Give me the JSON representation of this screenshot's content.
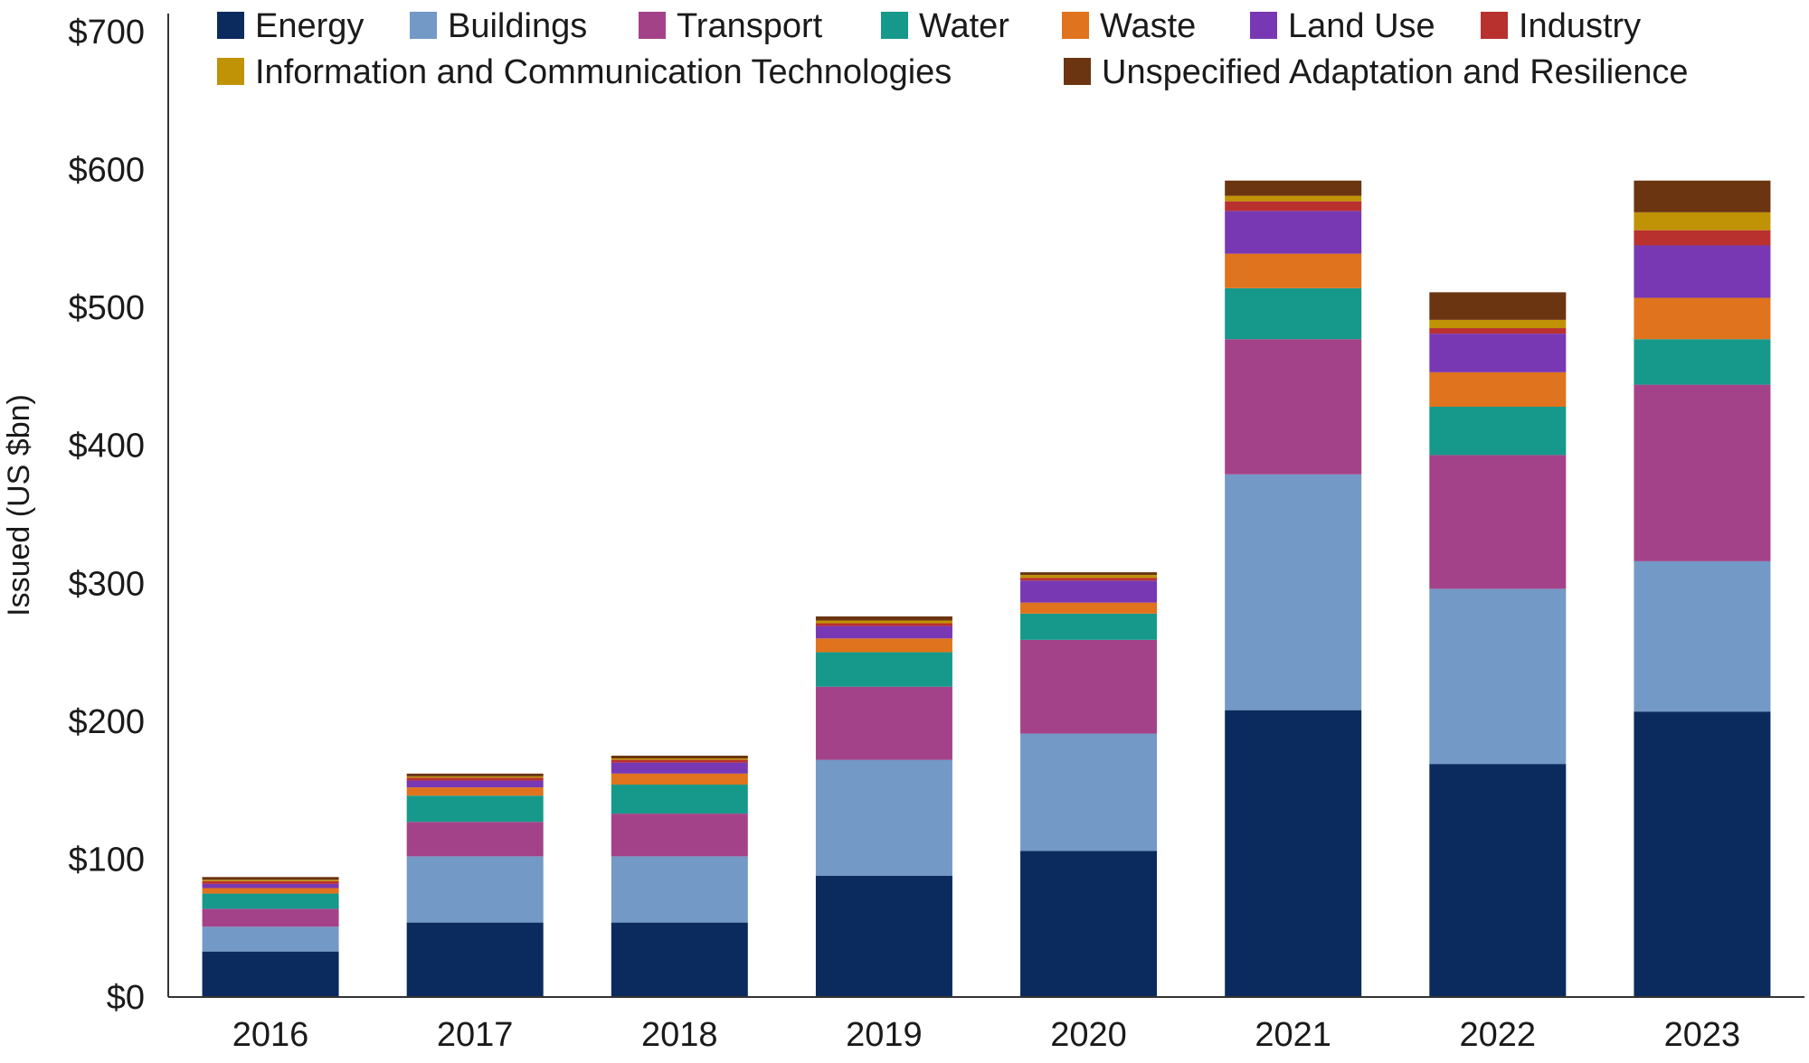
{
  "chart_data": {
    "type": "bar",
    "stacked": true,
    "title": "",
    "xlabel": "",
    "ylabel": "Issued (US $bn)",
    "ylim": [
      0,
      700
    ],
    "y_ticks": [
      0,
      100,
      200,
      300,
      400,
      500,
      600,
      700
    ],
    "y_tick_labels": [
      "$0",
      "$100",
      "$200",
      "$300",
      "$400",
      "$500",
      "$600",
      "$700"
    ],
    "grid": false,
    "legend_position": "top",
    "categories": [
      "2016",
      "2017",
      "2018",
      "2019",
      "2020",
      "2021",
      "2022",
      "2023"
    ],
    "series": [
      {
        "name": "Energy",
        "color": "#0b2b5e",
        "values": [
          33,
          54,
          54,
          88,
          106,
          208,
          169,
          207
        ]
      },
      {
        "name": "Buildings",
        "color": "#7399c6",
        "values": [
          18,
          48,
          48,
          84,
          85,
          171,
          127,
          109
        ]
      },
      {
        "name": "Transport",
        "color": "#a44289",
        "values": [
          13,
          25,
          31,
          53,
          68,
          98,
          97,
          128
        ]
      },
      {
        "name": "Water",
        "color": "#16998a",
        "values": [
          11,
          19,
          21,
          25,
          19,
          37,
          35,
          33
        ]
      },
      {
        "name": "Waste",
        "color": "#e0731d",
        "values": [
          4,
          6,
          8,
          10,
          8,
          25,
          25,
          30
        ]
      },
      {
        "name": "Land Use",
        "color": "#7838b3",
        "values": [
          3,
          5,
          8,
          9,
          16,
          31,
          28,
          38
        ]
      },
      {
        "name": "Industry",
        "color": "#b8312f",
        "values": [
          2,
          2,
          2,
          2,
          2,
          7,
          4,
          11
        ]
      },
      {
        "name": "Information and Communication Technologies",
        "color": "#c09205",
        "values": [
          1,
          1,
          1,
          2,
          2,
          4,
          6,
          13
        ]
      },
      {
        "name": "Unspecified Adaptation and Resilience",
        "color": "#6b3512",
        "values": [
          2,
          2,
          2,
          3,
          2,
          11,
          20,
          23
        ]
      }
    ]
  }
}
